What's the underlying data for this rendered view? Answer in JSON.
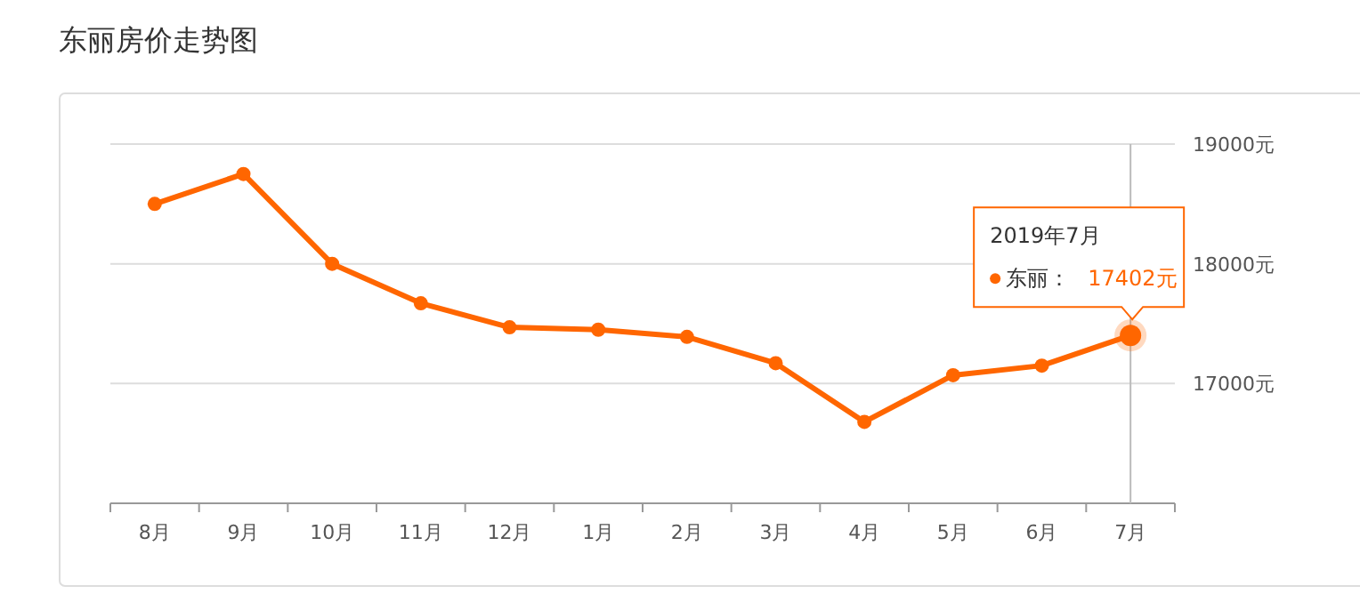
{
  "chart_data": {
    "type": "line",
    "title": "东丽房价走势图",
    "categories": [
      "8月",
      "9月",
      "10月",
      "11月",
      "12月",
      "1月",
      "2月",
      "3月",
      "4月",
      "5月",
      "6月",
      "7月"
    ],
    "series": [
      {
        "name": "东丽：",
        "color": "#ff6600",
        "values": [
          18500,
          18750,
          18000,
          17670,
          17470,
          17450,
          17390,
          17170,
          16680,
          17070,
          17150,
          17402
        ],
        "value_labels": [
          null,
          null,
          null,
          null,
          null,
          null,
          null,
          null,
          null,
          null,
          null,
          "17402元"
        ]
      }
    ],
    "ylim": [
      16000,
      19000
    ],
    "yticks": [
      {
        "value": 16000,
        "label": null
      },
      {
        "value": 17000,
        "label": "17000元"
      },
      {
        "value": 18000,
        "label": "18000元"
      },
      {
        "value": 19000,
        "label": "19000元"
      }
    ],
    "grid": "y",
    "marker": "circle",
    "line_style": "solid",
    "legend": "top right",
    "annotations": [
      "2019年7月"
    ],
    "ref_lines": [
      {
        "axis": "x",
        "value": "7月"
      }
    ]
  }
}
